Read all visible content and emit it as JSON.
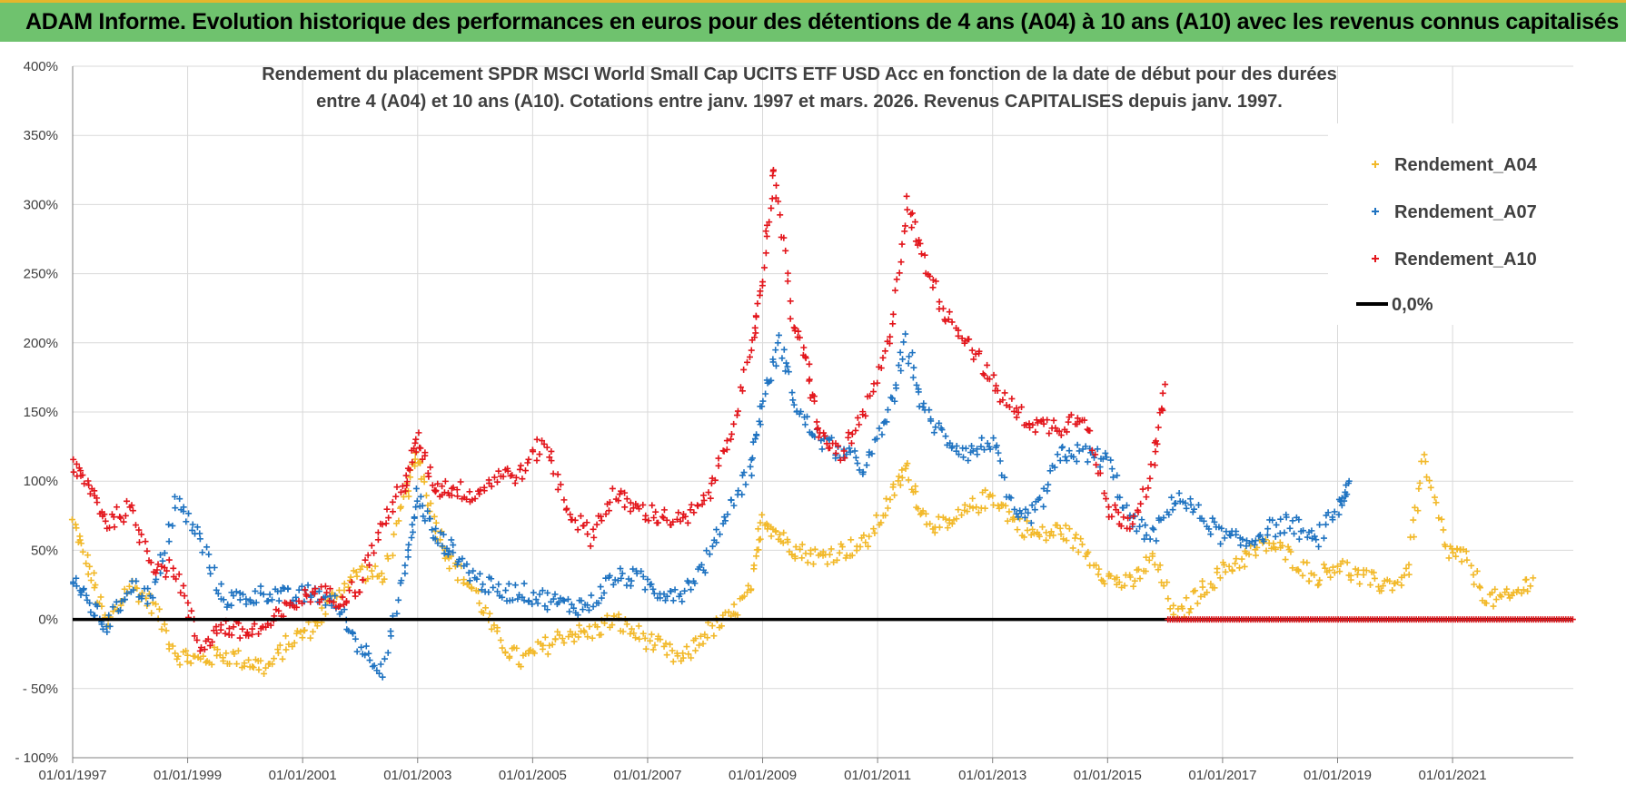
{
  "banner": {
    "text": "ADAM Informe. Evolution historique des performances en euros pour des détentions de 4 ans (A04) à 10 ans (A10) avec les revenus connus capitalisés"
  },
  "colors": {
    "banner_bg": "#6fc26e",
    "banner_border": "#e5b62c",
    "A04": "#f2b92a",
    "A07": "#1f73c1",
    "A10": "#e3161c",
    "zero": "#000000",
    "grid": "#d9d9d9"
  },
  "chart_data": {
    "type": "scatter",
    "title": [
      "Rendement du placement SPDR MSCI World Small Cap UCITS ETF USD Acc en fonction de la date de début pour des durées",
      "entre 4 (A04) et 10 ans (A10). Cotations entre janv. 1997 et mars. 2026. Revenus CAPITALISES depuis janv. 1997."
    ],
    "xlabel": "",
    "ylabel": "",
    "x_range": [
      1997.0,
      2023.1
    ],
    "ylim": [
      -100,
      400
    ],
    "y_ticks": [
      -100,
      -50,
      0,
      50,
      100,
      150,
      200,
      250,
      300,
      350,
      400
    ],
    "y_tick_labels": [
      "- 100%",
      "- 50%",
      "0%",
      "50%",
      "100%",
      "150%",
      "200%",
      "250%",
      "300%",
      "350%",
      "400%"
    ],
    "x_ticks": [
      1997,
      1999,
      2001,
      2003,
      2005,
      2007,
      2009,
      2011,
      2013,
      2015,
      2017,
      2019,
      2021
    ],
    "x_tick_labels": [
      "01/01/1997",
      "01/01/1999",
      "01/01/2001",
      "01/01/2003",
      "01/01/2005",
      "01/01/2007",
      "01/01/2009",
      "01/01/2011",
      "01/01/2013",
      "01/01/2015",
      "01/01/2017",
      "01/01/2019",
      "01/01/2021"
    ],
    "grid": true,
    "legend_position": "top-right",
    "legend": [
      "Rendement_A04",
      "Rendement_A07",
      "Rendement_A10",
      "0,0%"
    ],
    "series": [
      {
        "name": "Rendement_A04",
        "marker": "+",
        "x": [
          1997.0,
          1997.3,
          1997.6,
          1998.0,
          1998.4,
          1998.8,
          1999.2,
          1999.6,
          2000.0,
          2000.4,
          2000.8,
          2001.2,
          2001.6,
          2002.0,
          2002.4,
          2002.8,
          2003.0,
          2003.3,
          2003.6,
          2004.0,
          2004.4,
          2004.8,
          2005.2,
          2005.6,
          2006.0,
          2006.4,
          2006.8,
          2007.2,
          2007.6,
          2008.0,
          2008.4,
          2008.8,
          2009.0,
          2009.3,
          2009.6,
          2010.0,
          2010.4,
          2010.8,
          2011.2,
          2011.5,
          2011.8,
          2012.2,
          2012.6,
          2013.0,
          2013.4,
          2013.8,
          2014.2,
          2014.6,
          2015.0,
          2015.4,
          2015.8,
          2016.2,
          2016.6,
          2017.0,
          2017.4,
          2017.8,
          2018.2,
          2018.6,
          2019.0,
          2019.4,
          2019.8,
          2020.2,
          2020.5,
          2020.9,
          2021.2,
          2021.6,
          2022.0,
          2022.4
        ],
        "y": [
          70,
          35,
          -5,
          25,
          10,
          -25,
          -30,
          -25,
          -30,
          -35,
          -15,
          -5,
          20,
          35,
          30,
          90,
          120,
          70,
          40,
          20,
          -15,
          -30,
          -20,
          -10,
          -10,
          0,
          -10,
          -20,
          -30,
          -10,
          0,
          20,
          75,
          60,
          50,
          45,
          50,
          55,
          85,
          110,
          75,
          65,
          80,
          90,
          70,
          60,
          65,
          50,
          30,
          25,
          45,
          0,
          20,
          35,
          45,
          55,
          45,
          30,
          40,
          30,
          25,
          30,
          115,
          50,
          45,
          15,
          15,
          30
        ]
      },
      {
        "name": "Rendement_A07",
        "marker": "+",
        "x": [
          1997.0,
          1997.3,
          1997.6,
          1998.0,
          1998.4,
          1998.8,
          1999.2,
          1999.6,
          2000.0,
          2000.4,
          2000.8,
          2001.2,
          2001.6,
          2002.0,
          2002.4,
          2002.8,
          2003.0,
          2003.3,
          2003.6,
          2004.0,
          2004.4,
          2004.8,
          2005.2,
          2005.6,
          2006.0,
          2006.4,
          2006.8,
          2007.2,
          2007.6,
          2008.0,
          2008.4,
          2008.8,
          2009.0,
          2009.3,
          2009.6,
          2010.0,
          2010.4,
          2010.8,
          2011.2,
          2011.5,
          2011.8,
          2012.2,
          2012.6,
          2013.0,
          2013.4,
          2013.8,
          2014.2,
          2014.6,
          2015.0,
          2015.4,
          2015.8,
          2016.2,
          2016.6,
          2017.0,
          2017.4,
          2017.8,
          2018.2,
          2018.6,
          2019.0,
          2019.2
        ],
        "y": [
          30,
          10,
          -5,
          25,
          15,
          85,
          60,
          15,
          15,
          20,
          15,
          20,
          10,
          -20,
          -35,
          40,
          90,
          60,
          50,
          30,
          20,
          20,
          15,
          10,
          10,
          30,
          30,
          20,
          20,
          40,
          80,
          110,
          160,
          200,
          150,
          130,
          120,
          110,
          150,
          200,
          150,
          130,
          120,
          130,
          70,
          80,
          120,
          120,
          115,
          70,
          60,
          90,
          75,
          60,
          55,
          65,
          70,
          55,
          80,
          100
        ]
      },
      {
        "name": "Rendement_A10",
        "marker": "+",
        "x": [
          1997.0,
          1997.3,
          1997.6,
          1998.0,
          1998.4,
          1998.8,
          1999.2,
          1999.6,
          2000.0,
          2000.4,
          2000.8,
          2001.2,
          2001.6,
          2002.0,
          2002.4,
          2002.8,
          2003.0,
          2003.3,
          2003.6,
          2004.0,
          2004.4,
          2004.8,
          2005.2,
          2005.6,
          2006.0,
          2006.4,
          2006.8,
          2007.2,
          2007.6,
          2008.0,
          2008.4,
          2008.8,
          2009.0,
          2009.2,
          2009.5,
          2009.8,
          2010.0,
          2010.4,
          2010.8,
          2011.2,
          2011.5,
          2011.8,
          2012.2,
          2012.6,
          2013.0,
          2013.4,
          2013.8,
          2014.2,
          2014.6,
          2015.0,
          2015.4,
          2015.8,
          2016.0
        ],
        "y": [
          110,
          95,
          70,
          80,
          40,
          35,
          -20,
          -5,
          -10,
          -5,
          10,
          20,
          15,
          25,
          70,
          100,
          130,
          95,
          95,
          90,
          105,
          105,
          130,
          80,
          60,
          90,
          80,
          75,
          70,
          85,
          130,
          190,
          250,
          330,
          220,
          180,
          130,
          120,
          150,
          200,
          300,
          260,
          220,
          200,
          170,
          150,
          140,
          140,
          150,
          80,
          70,
          110,
          170
        ]
      },
      {
        "name": "0,0%",
        "x": [
          1997.0,
          2023.1
        ],
        "y": [
          0,
          0
        ]
      }
    ]
  }
}
